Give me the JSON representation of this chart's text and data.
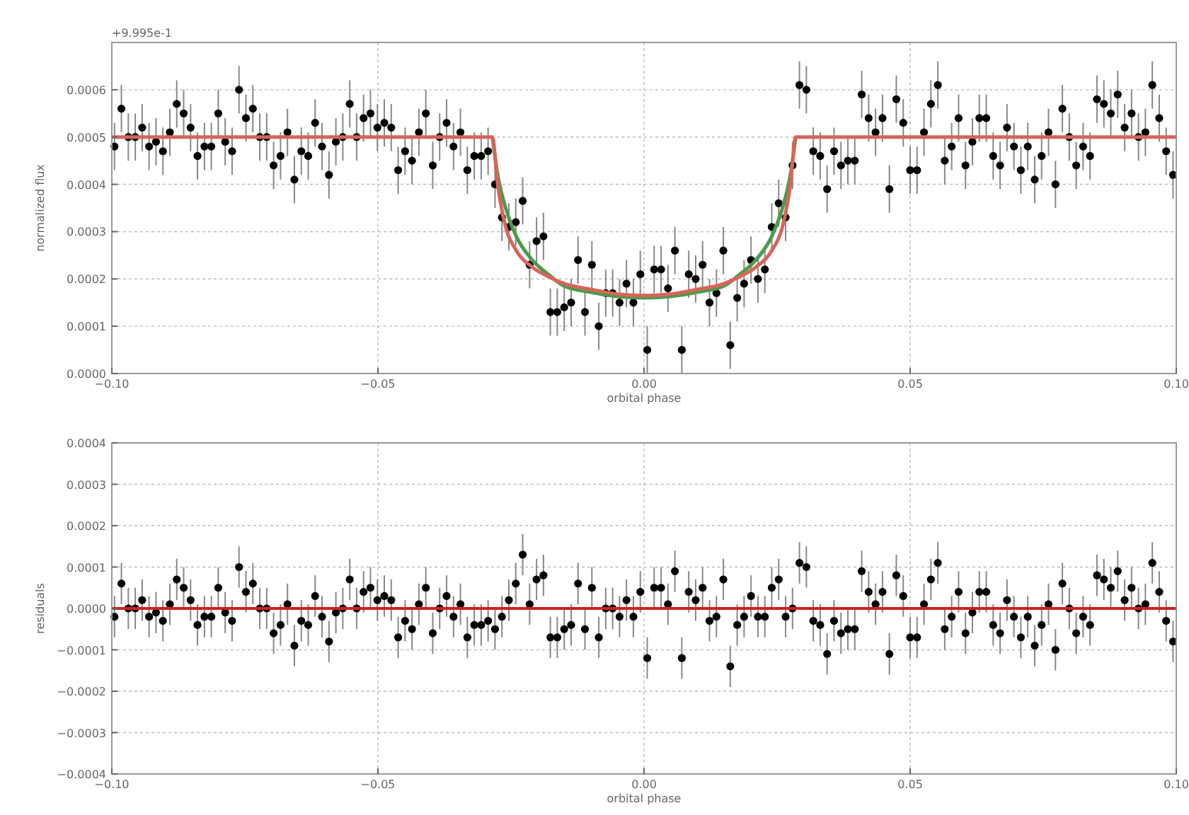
{
  "chart_data": [
    {
      "type": "scatter",
      "xlabel": "orbital phase",
      "ylabel": "normalized flux",
      "annotations": [
        "+9.995e-1"
      ],
      "grid": true,
      "xlim": [
        -0.1,
        0.1
      ],
      "xticks": [
        {
          "value": -0.1,
          "label": "−0.10"
        },
        {
          "value": -0.05,
          "label": "−0.05"
        },
        {
          "value": 0,
          "label": "0.00"
        },
        {
          "value": 0.05,
          "label": "0.05"
        },
        {
          "value": 0.1,
          "label": "0.10"
        }
      ],
      "ylim": [
        0,
        0.0007
      ],
      "yticks": [
        {
          "value": 0,
          "label": "0.0000"
        },
        {
          "value": 0.0001,
          "label": "0.0001"
        },
        {
          "value": 0.0002,
          "label": "0.0002"
        },
        {
          "value": 0.0003,
          "label": "0.0003"
        },
        {
          "value": 0.0004,
          "label": "0.0004"
        },
        {
          "value": 0.0005,
          "label": "0.0005"
        },
        {
          "value": 0.0006,
          "label": "0.0006"
        }
      ],
      "series": [
        {
          "type": "scatter",
          "color": "#000000",
          "x": [
            -0.0995,
            -0.0982,
            -0.0969,
            -0.0956,
            -0.0943,
            -0.093,
            -0.0917,
            -0.0904,
            -0.0891,
            -0.0878,
            -0.0865,
            -0.0852,
            -0.0839,
            -0.0826,
            -0.0813,
            -0.08,
            -0.0787,
            -0.0774,
            -0.0761,
            -0.0748,
            -0.0735,
            -0.0722,
            -0.0709,
            -0.0696,
            -0.0683,
            -0.067,
            -0.0657,
            -0.0644,
            -0.0631,
            -0.0618,
            -0.0605,
            -0.0592,
            -0.0579,
            -0.0566,
            -0.0553,
            -0.054,
            -0.0527,
            -0.0514,
            -0.0501,
            -0.0488,
            -0.0475,
            -0.0462,
            -0.0449,
            -0.0436,
            -0.0423,
            -0.041,
            -0.0397,
            -0.0384,
            -0.0371,
            -0.0358,
            -0.0345,
            -0.0332,
            -0.0319,
            -0.0306,
            -0.0293,
            -0.028,
            -0.0267,
            -0.0254,
            -0.0241,
            -0.0228,
            -0.0215,
            -0.0202,
            -0.0189,
            -0.0176,
            -0.0163,
            -0.015,
            -0.0137,
            -0.0124,
            -0.0111,
            -0.0098,
            -0.0085,
            -0.0072,
            -0.0059,
            -0.0046,
            -0.0033,
            -0.002,
            -0.0007,
            0.0006,
            0.0019,
            0.0032,
            0.0045,
            0.0058,
            0.0071,
            0.0084,
            0.0097,
            0.011,
            0.0123,
            0.0136,
            0.0149,
            0.0162,
            0.0175,
            0.0188,
            0.0201,
            0.0214,
            0.0227,
            0.024,
            0.0253,
            0.0266,
            0.0279,
            0.0292,
            0.0305,
            0.0318,
            0.0331,
            0.0344,
            0.0357,
            0.037,
            0.0383,
            0.0396,
            0.0409,
            0.0422,
            0.0435,
            0.0448,
            0.0461,
            0.0474,
            0.0487,
            0.05,
            0.0513,
            0.0526,
            0.0539,
            0.0552,
            0.0565,
            0.0578,
            0.0591,
            0.0604,
            0.0617,
            0.063,
            0.0643,
            0.0656,
            0.0669,
            0.0682,
            0.0695,
            0.0708,
            0.0721,
            0.0734,
            0.0747,
            0.076,
            0.0773,
            0.0786,
            0.0799,
            0.0812,
            0.0825,
            0.0838,
            0.0851,
            0.0864,
            0.0877,
            0.089,
            0.0903,
            0.0916,
            0.0929,
            0.0942,
            0.0955,
            0.0968,
            0.0981,
            0.0994
          ],
          "values": [
            0.00048,
            0.00056,
            0.0005,
            0.0005,
            0.00052,
            0.00048,
            0.00049,
            0.00047,
            0.00051,
            0.00057,
            0.00055,
            0.00052,
            0.00046,
            0.00048,
            0.00048,
            0.00055,
            0.00049,
            0.00047,
            0.0006,
            0.00054,
            0.00056,
            0.0005,
            0.0005,
            0.00044,
            0.00046,
            0.00051,
            0.00041,
            0.00047,
            0.00046,
            0.00053,
            0.00048,
            0.00042,
            0.00049,
            0.0005,
            0.00057,
            0.0005,
            0.00054,
            0.00055,
            0.00052,
            0.00053,
            0.00052,
            0.00043,
            0.00047,
            0.00045,
            0.00051,
            0.00055,
            0.00044,
            0.0005,
            0.00053,
            0.00048,
            0.00051,
            0.00043,
            0.00046,
            0.00046,
            0.00047,
            0.0004,
            0.00033,
            0.00031,
            0.00032,
            0.000365,
            0.00023,
            0.00028,
            0.00029,
            0.00013,
            0.00013,
            0.00014,
            0.00015,
            0.00024,
            0.00013,
            0.00023,
            0.0001,
            0.00017,
            0.00017,
            0.00015,
            0.00019,
            0.00015,
            0.00021,
            5e-05,
            0.00022,
            0.00022,
            0.00018,
            0.00026,
            5e-05,
            0.00021,
            0.0002,
            0.00023,
            0.00015,
            0.00017,
            0.00026,
            6e-05,
            0.00016,
            0.00019,
            0.00024,
            0.0002,
            0.00022,
            0.00031,
            0.00036,
            0.00033,
            0.00044,
            0.00061,
            0.0006,
            0.00047,
            0.00046,
            0.00039,
            0.00047,
            0.00044,
            0.00045,
            0.00045,
            0.00059,
            0.00054,
            0.00051,
            0.00054,
            0.00039,
            0.00058,
            0.00053,
            0.00043,
            0.00043,
            0.00051,
            0.00057,
            0.00061,
            0.00045,
            0.00048,
            0.00054,
            0.00044,
            0.00049,
            0.00054,
            0.00054,
            0.00046,
            0.00044,
            0.00052,
            0.00048,
            0.00043,
            0.00048,
            0.00041,
            0.00046,
            0.00051,
            0.0004,
            0.00056,
            0.0005,
            0.00044,
            0.00048,
            0.00046,
            0.00058,
            0.00057,
            0.00055,
            0.00059,
            0.00052,
            0.00055,
            0.0005,
            0.00051,
            0.00061,
            0.00054,
            0.00047,
            0.00042
          ],
          "marker": "circle",
          "errors": [
            5e-05,
            5e-05,
            5e-05,
            5e-05,
            5e-05,
            5e-05,
            5e-05,
            5e-05,
            5e-05,
            5e-05,
            5e-05,
            5e-05,
            5e-05,
            5e-05,
            5e-05,
            5e-05,
            5e-05,
            5e-05,
            5e-05,
            5e-05,
            5e-05,
            5e-05,
            5e-05,
            5e-05,
            5e-05,
            5e-05,
            5e-05,
            5e-05,
            5e-05,
            5e-05,
            5e-05,
            5e-05,
            5e-05,
            5e-05,
            5e-05,
            5e-05,
            5e-05,
            5e-05,
            5e-05,
            5e-05,
            5e-05,
            5e-05,
            5e-05,
            5e-05,
            5e-05,
            5e-05,
            5e-05,
            5e-05,
            5e-05,
            5e-05,
            5e-05,
            5e-05,
            5e-05,
            5e-05,
            5e-05,
            5e-05,
            5e-05,
            5e-05,
            5e-05,
            5e-05,
            5e-05,
            5e-05,
            5e-05,
            5e-05,
            5e-05,
            5e-05,
            5e-05,
            5e-05,
            5e-05,
            5e-05,
            5e-05,
            5e-05,
            5e-05,
            5e-05,
            5e-05,
            5e-05,
            5e-05,
            5e-05,
            5e-05,
            5e-05,
            5e-05,
            5e-05,
            5e-05,
            5e-05,
            5e-05,
            5e-05,
            5e-05,
            5e-05,
            5e-05,
            5e-05,
            5e-05,
            5e-05,
            5e-05,
            5e-05,
            5e-05,
            5e-05,
            5e-05,
            5e-05,
            5e-05,
            5e-05,
            5e-05,
            5e-05,
            5e-05,
            5e-05,
            5e-05,
            5e-05,
            5e-05,
            5e-05,
            5e-05,
            5e-05,
            5e-05,
            5e-05,
            5e-05,
            5e-05,
            5e-05,
            5e-05,
            5e-05,
            5e-05,
            5e-05,
            5e-05,
            5e-05,
            5e-05,
            5e-05,
            5e-05,
            5e-05,
            5e-05,
            5e-05,
            5e-05,
            5e-05,
            5e-05,
            5e-05,
            5e-05,
            5e-05,
            5e-05,
            5e-05,
            5e-05,
            5e-05,
            5e-05,
            5e-05,
            5e-05,
            5e-05,
            5e-05,
            5e-05,
            5e-05,
            5e-05,
            5e-05,
            5e-05,
            5e-05,
            5e-05,
            5e-05,
            5e-05,
            5e-05,
            5e-05,
            5e-05
          ]
        },
        {
          "type": "line",
          "color": "#4c9a4c",
          "x": [
            -0.0285,
            -0.0275,
            -0.026,
            -0.024,
            -0.021,
            -0.018,
            -0.015,
            -0.01,
            -0.005,
            0,
            0.005,
            0.01,
            0.015,
            0.018,
            0.021,
            0.024,
            0.026,
            0.0275,
            0.0285
          ],
          "values": [
            0.0005,
            0.00042,
            0.00035,
            0.00029,
            0.00024,
            0.00021,
            0.000185,
            0.000172,
            0.000163,
            0.00016,
            0.000163,
            0.000172,
            0.000185,
            0.00021,
            0.00024,
            0.00029,
            0.00035,
            0.00042,
            0.0005
          ]
        },
        {
          "type": "line",
          "color": "#d9645a",
          "x": [
            -0.1,
            -0.0285,
            -0.0275,
            -0.026,
            -0.024,
            -0.021,
            -0.018,
            -0.015,
            -0.01,
            -0.005,
            0,
            0.005,
            0.01,
            0.015,
            0.018,
            0.021,
            0.024,
            0.026,
            0.0275,
            0.0285,
            0.1
          ],
          "values": [
            0.0005,
            0.0005,
            0.0004,
            0.00031,
            0.00026,
            0.000225,
            0.000205,
            0.00019,
            0.000178,
            0.000168,
            0.000165,
            0.000168,
            0.000178,
            0.00019,
            0.000205,
            0.000225,
            0.00026,
            0.00031,
            0.0004,
            0.0005,
            0.0005
          ]
        }
      ]
    },
    {
      "type": "scatter",
      "xlabel": "orbital phase",
      "ylabel": "residuals",
      "grid": true,
      "xlim": [
        -0.1,
        0.1
      ],
      "xticks": [
        {
          "value": -0.1,
          "label": "−0.10"
        },
        {
          "value": -0.05,
          "label": "−0.05"
        },
        {
          "value": 0,
          "label": "0.00"
        },
        {
          "value": 0.05,
          "label": "0.05"
        },
        {
          "value": 0.1,
          "label": "0.10"
        }
      ],
      "ylim": [
        -0.0004,
        0.0004
      ],
      "yticks": [
        {
          "value": -0.0004,
          "label": "−0.0004"
        },
        {
          "value": -0.0003,
          "label": "−0.0003"
        },
        {
          "value": -0.0002,
          "label": "−0.0002"
        },
        {
          "value": -0.0001,
          "label": "−0.0001"
        },
        {
          "value": 0,
          "label": "0.0000"
        },
        {
          "value": 0.0001,
          "label": "0.0001"
        },
        {
          "value": 0.0002,
          "label": "0.0002"
        },
        {
          "value": 0.0003,
          "label": "0.0003"
        },
        {
          "value": 0.0004,
          "label": "0.0004"
        }
      ],
      "ref_lines": [
        {
          "axis": "y",
          "value": 0,
          "color": "#cc2222"
        }
      ],
      "series": [
        {
          "type": "scatter",
          "color": "#000000",
          "x": [
            -0.0995,
            -0.0982,
            -0.0969,
            -0.0956,
            -0.0943,
            -0.093,
            -0.0917,
            -0.0904,
            -0.0891,
            -0.0878,
            -0.0865,
            -0.0852,
            -0.0839,
            -0.0826,
            -0.0813,
            -0.08,
            -0.0787,
            -0.0774,
            -0.0761,
            -0.0748,
            -0.0735,
            -0.0722,
            -0.0709,
            -0.0696,
            -0.0683,
            -0.067,
            -0.0657,
            -0.0644,
            -0.0631,
            -0.0618,
            -0.0605,
            -0.0592,
            -0.0579,
            -0.0566,
            -0.0553,
            -0.054,
            -0.0527,
            -0.0514,
            -0.0501,
            -0.0488,
            -0.0475,
            -0.0462,
            -0.0449,
            -0.0436,
            -0.0423,
            -0.041,
            -0.0397,
            -0.0384,
            -0.0371,
            -0.0358,
            -0.0345,
            -0.0332,
            -0.0319,
            -0.0306,
            -0.0293,
            -0.028,
            -0.0267,
            -0.0254,
            -0.0241,
            -0.0228,
            -0.0215,
            -0.0202,
            -0.0189,
            -0.0176,
            -0.0163,
            -0.015,
            -0.0137,
            -0.0124,
            -0.0111,
            -0.0098,
            -0.0085,
            -0.0072,
            -0.0059,
            -0.0046,
            -0.0033,
            -0.002,
            -0.0007,
            0.0006,
            0.0019,
            0.0032,
            0.0045,
            0.0058,
            0.0071,
            0.0084,
            0.0097,
            0.011,
            0.0123,
            0.0136,
            0.0149,
            0.0162,
            0.0175,
            0.0188,
            0.0201,
            0.0214,
            0.0227,
            0.024,
            0.0253,
            0.0266,
            0.0279,
            0.0292,
            0.0305,
            0.0318,
            0.0331,
            0.0344,
            0.0357,
            0.037,
            0.0383,
            0.0396,
            0.0409,
            0.0422,
            0.0435,
            0.0448,
            0.0461,
            0.0474,
            0.0487,
            0.05,
            0.0513,
            0.0526,
            0.0539,
            0.0552,
            0.0565,
            0.0578,
            0.0591,
            0.0604,
            0.0617,
            0.063,
            0.0643,
            0.0656,
            0.0669,
            0.0682,
            0.0695,
            0.0708,
            0.0721,
            0.0734,
            0.0747,
            0.076,
            0.0773,
            0.0786,
            0.0799,
            0.0812,
            0.0825,
            0.0838,
            0.0851,
            0.0864,
            0.0877,
            0.089,
            0.0903,
            0.0916,
            0.0929,
            0.0942,
            0.0955,
            0.0968,
            0.0981,
            0.0994
          ],
          "values": [
            -2e-05,
            6e-05,
            0,
            0,
            2e-05,
            -2e-05,
            -1e-05,
            -3e-05,
            1e-05,
            7e-05,
            5e-05,
            2e-05,
            -4e-05,
            -2e-05,
            -2e-05,
            5e-05,
            -1e-05,
            -3e-05,
            0.0001,
            4e-05,
            6e-05,
            0,
            0,
            -6e-05,
            -4e-05,
            1e-05,
            -9e-05,
            -3e-05,
            -4e-05,
            3e-05,
            -2e-05,
            -8e-05,
            -1e-05,
            0,
            7e-05,
            0,
            4e-05,
            5e-05,
            2e-05,
            3e-05,
            2e-05,
            -7e-05,
            -3e-05,
            -5e-05,
            1e-05,
            5e-05,
            -6e-05,
            0,
            3e-05,
            -2e-05,
            1e-05,
            -7e-05,
            -4e-05,
            -4e-05,
            -3e-05,
            -5e-05,
            -2e-05,
            2e-05,
            6e-05,
            0.00013,
            1e-05,
            7e-05,
            8e-05,
            -7e-05,
            -7e-05,
            -5e-05,
            -4e-05,
            6e-05,
            -5e-05,
            5e-05,
            -7e-05,
            0,
            0,
            -2e-05,
            2e-05,
            -2e-05,
            4e-05,
            -0.00012,
            5e-05,
            5e-05,
            1e-05,
            9e-05,
            -0.00012,
            4e-05,
            2e-05,
            5e-05,
            -3e-05,
            -2e-05,
            7e-05,
            -0.00014,
            -4e-05,
            -2e-05,
            3e-05,
            -2e-05,
            -2e-05,
            5e-05,
            7e-05,
            -2e-05,
            0,
            0.00011,
            0.0001,
            -3e-05,
            -4e-05,
            -0.00011,
            -3e-05,
            -6e-05,
            -5e-05,
            -5e-05,
            9e-05,
            4e-05,
            1e-05,
            4e-05,
            -0.00011,
            8e-05,
            3e-05,
            -7e-05,
            -7e-05,
            1e-05,
            7e-05,
            0.00011,
            -5e-05,
            -2e-05,
            4e-05,
            -6e-05,
            -1e-05,
            4e-05,
            4e-05,
            -4e-05,
            -6e-05,
            2e-05,
            -2e-05,
            -7e-05,
            -2e-05,
            -9e-05,
            -4e-05,
            1e-05,
            -0.0001,
            6e-05,
            0,
            -6e-05,
            -2e-05,
            -4e-05,
            8e-05,
            7e-05,
            5e-05,
            9e-05,
            2e-05,
            5e-05,
            0,
            1e-05,
            0.00011,
            4e-05,
            -3e-05,
            -8e-05
          ],
          "marker": "circle",
          "errors": [
            5e-05,
            5e-05,
            5e-05,
            5e-05,
            5e-05,
            5e-05,
            5e-05,
            5e-05,
            5e-05,
            5e-05,
            5e-05,
            5e-05,
            5e-05,
            5e-05,
            5e-05,
            5e-05,
            5e-05,
            5e-05,
            5e-05,
            5e-05,
            5e-05,
            5e-05,
            5e-05,
            5e-05,
            5e-05,
            5e-05,
            5e-05,
            5e-05,
            5e-05,
            5e-05,
            5e-05,
            5e-05,
            5e-05,
            5e-05,
            5e-05,
            5e-05,
            5e-05,
            5e-05,
            5e-05,
            5e-05,
            5e-05,
            5e-05,
            5e-05,
            5e-05,
            5e-05,
            5e-05,
            5e-05,
            5e-05,
            5e-05,
            5e-05,
            5e-05,
            5e-05,
            5e-05,
            5e-05,
            5e-05,
            5e-05,
            5e-05,
            5e-05,
            5e-05,
            5e-05,
            5e-05,
            5e-05,
            5e-05,
            5e-05,
            5e-05,
            5e-05,
            5e-05,
            5e-05,
            5e-05,
            5e-05,
            5e-05,
            5e-05,
            5e-05,
            5e-05,
            5e-05,
            5e-05,
            5e-05,
            5e-05,
            5e-05,
            5e-05,
            5e-05,
            5e-05,
            5e-05,
            5e-05,
            5e-05,
            5e-05,
            5e-05,
            5e-05,
            5e-05,
            5e-05,
            5e-05,
            5e-05,
            5e-05,
            5e-05,
            5e-05,
            5e-05,
            5e-05,
            5e-05,
            5e-05,
            5e-05,
            5e-05,
            5e-05,
            5e-05,
            5e-05,
            5e-05,
            5e-05,
            5e-05,
            5e-05,
            5e-05,
            5e-05,
            5e-05,
            5e-05,
            5e-05,
            5e-05,
            5e-05,
            5e-05,
            5e-05,
            5e-05,
            5e-05,
            5e-05,
            5e-05,
            5e-05,
            5e-05,
            5e-05,
            5e-05,
            5e-05,
            5e-05,
            5e-05,
            5e-05,
            5e-05,
            5e-05,
            5e-05,
            5e-05,
            5e-05,
            5e-05,
            5e-05,
            5e-05,
            5e-05,
            5e-05,
            5e-05,
            5e-05,
            5e-05,
            5e-05,
            5e-05,
            5e-05,
            5e-05,
            5e-05,
            5e-05,
            5e-05,
            5e-05,
            5e-05,
            5e-05,
            5e-05,
            5e-05
          ]
        }
      ]
    }
  ]
}
